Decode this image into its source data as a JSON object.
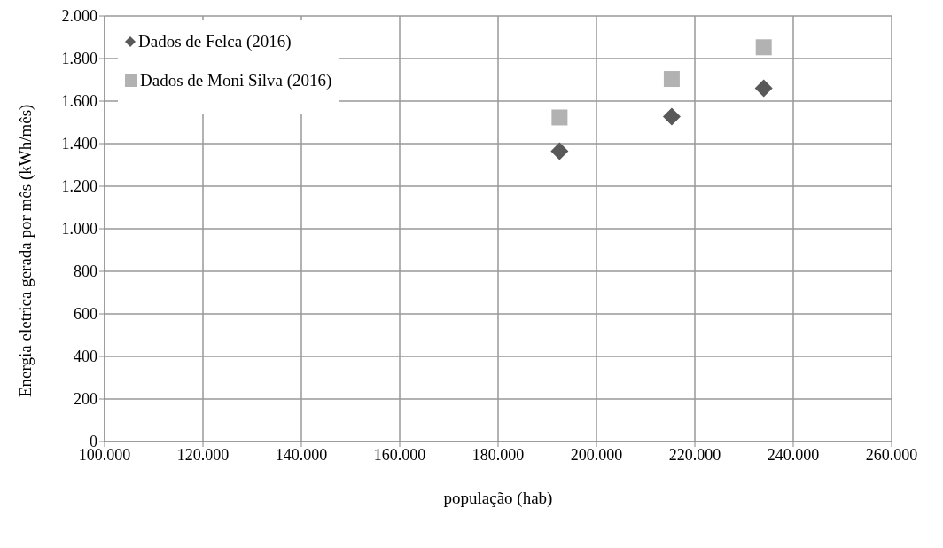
{
  "chart_data": {
    "type": "scatter",
    "xlabel": "população (hab)",
    "ylabel": "Energia eletrica gerada por mês (kWh/mês)",
    "xlim": [
      100000,
      260000
    ],
    "xticks": [
      {
        "value": 100000,
        "label": "100.000"
      },
      {
        "value": 120000,
        "label": "120.000"
      },
      {
        "value": 140000,
        "label": "140.000"
      },
      {
        "value": 160000,
        "label": "160.000"
      },
      {
        "value": 180000,
        "label": "180.000"
      },
      {
        "value": 200000,
        "label": "200.000"
      },
      {
        "value": 220000,
        "label": "220.000"
      },
      {
        "value": 240000,
        "label": "240.000"
      },
      {
        "value": 260000,
        "label": "260.000"
      }
    ],
    "ylim": [
      0,
      2000
    ],
    "yticks": [
      0,
      200,
      400,
      600,
      800,
      {
        "value": 1000,
        "label": "1.000"
      },
      {
        "value": 1200,
        "label": "1.200"
      },
      {
        "value": 1400,
        "label": "1.400"
      },
      {
        "value": 1600,
        "label": "1.600"
      },
      {
        "value": 1800,
        "label": "1.800"
      },
      {
        "value": 2000,
        "label": "2.000"
      }
    ],
    "grid": true,
    "legend": "top left",
    "series": [
      {
        "name": "Dados de Felca (2016)",
        "color": "#595959",
        "marker": "diamond",
        "x": [
          192500,
          215300,
          234000
        ],
        "values": [
          1365,
          1527,
          1660
        ]
      },
      {
        "name": "Dados de Moni Silva (2016)",
        "color": "#b2b2b2",
        "marker": "square",
        "x": [
          192500,
          215300,
          234000
        ],
        "values": [
          1523,
          1704,
          1853
        ]
      }
    ]
  }
}
